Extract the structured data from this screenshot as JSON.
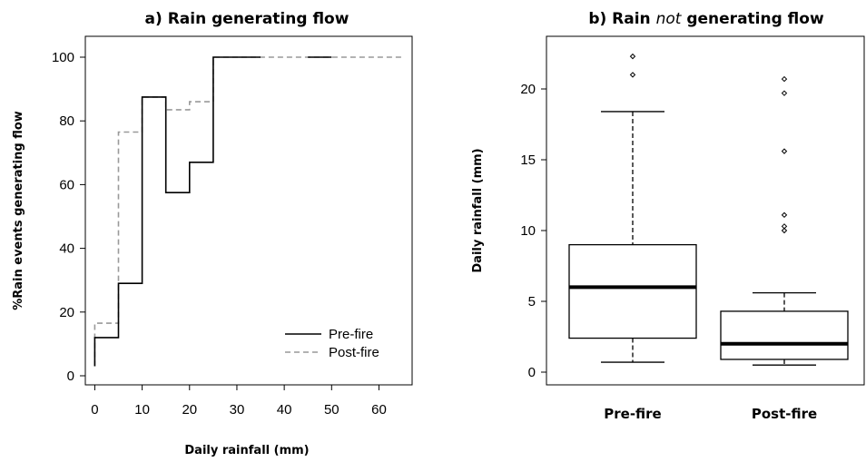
{
  "chart_data": [
    {
      "type": "line",
      "title": "a) Rain generating flow",
      "xlabel": "Daily rainfall (mm)",
      "ylabel": "%Rain events generating flow",
      "xlim": [
        -2,
        67
      ],
      "ylim": [
        0,
        100
      ],
      "xticks": [
        "0",
        "10",
        "20",
        "30",
        "40",
        "50",
        "60"
      ],
      "yticks": [
        "0",
        "20",
        "40",
        "60",
        "80",
        "100"
      ],
      "legend_position": "bottom-right",
      "series": [
        {
          "name": "Pre-fire",
          "color": "#000000",
          "style": "solid",
          "x": [
            0,
            0,
            5,
            5,
            10,
            10,
            15,
            15,
            20,
            20,
            25,
            25,
            35
          ],
          "y": [
            3,
            12,
            12,
            29,
            29,
            87.5,
            87.5,
            57.5,
            57.5,
            67,
            67,
            100,
            100
          ]
        },
        {
          "name": "Pre-fire",
          "color": "#000000",
          "style": "solid",
          "x": [
            45,
            50
          ],
          "y": [
            100,
            100
          ]
        },
        {
          "name": "Post-fire",
          "color": "#999999",
          "style": "dashed",
          "x": [
            0,
            0,
            5,
            5,
            10,
            10,
            15,
            15,
            20,
            20,
            25,
            25,
            65
          ],
          "y": [
            3,
            16.5,
            16.5,
            76.5,
            76.5,
            87.5,
            87.5,
            83.5,
            83.5,
            86,
            86,
            100,
            100
          ]
        }
      ]
    },
    {
      "type": "box",
      "title_prefix": "b) Rain ",
      "title_emph": "not",
      "title_suffix": " generating flow",
      "xlabel": "",
      "ylabel": "Daily rainfall (mm)",
      "ylim": [
        -0.5,
        23
      ],
      "yticks": [
        "0",
        "5",
        "10",
        "15",
        "20"
      ],
      "categories": [
        "Pre-fire",
        "Post-fire"
      ],
      "boxes": [
        {
          "whisker_low": 0.7,
          "q1": 2.4,
          "median": 6.0,
          "q3": 9.0,
          "whisker_high": 18.4,
          "outliers": [
            21.0,
            22.3
          ]
        },
        {
          "whisker_low": 0.5,
          "q1": 0.9,
          "median": 2.0,
          "q3": 4.3,
          "whisker_high": 5.6,
          "outliers": [
            10.0,
            10.3,
            11.1,
            15.6,
            19.7,
            20.7
          ]
        }
      ]
    }
  ]
}
